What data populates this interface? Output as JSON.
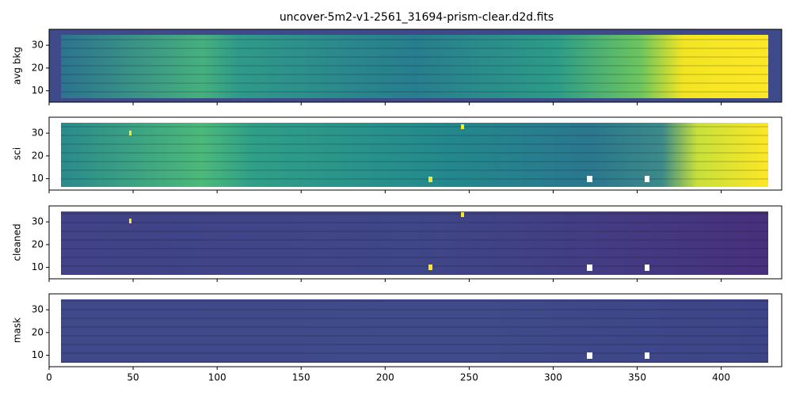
{
  "chart_data": [
    {
      "type": "image",
      "title": "uncover-5m2-v1-2561_31694-prism-clear.d2d.fits",
      "ylabel": "avg bkg",
      "xlim": [
        0,
        436
      ],
      "ylim": [
        5,
        37
      ],
      "xticks": [
        0,
        50,
        100,
        150,
        200,
        250,
        300,
        350,
        400
      ],
      "yticks": [
        10,
        20,
        30
      ]
    },
    {
      "type": "image",
      "ylabel": "sci",
      "xlim": [
        0,
        436
      ],
      "ylim": [
        5,
        37
      ],
      "xticks": [
        0,
        50,
        100,
        150,
        200,
        250,
        300,
        350,
        400
      ],
      "yticks": [
        10,
        20,
        30
      ]
    },
    {
      "type": "image",
      "ylabel": "cleaned",
      "xlim": [
        0,
        436
      ],
      "ylim": [
        5,
        37
      ],
      "xticks": [
        0,
        50,
        100,
        150,
        200,
        250,
        300,
        350,
        400
      ],
      "yticks": [
        10,
        20,
        30
      ]
    },
    {
      "type": "image",
      "ylabel": "mask",
      "xlim": [
        0,
        436
      ],
      "ylim": [
        5,
        37
      ],
      "xticks": [
        0,
        50,
        100,
        150,
        200,
        250,
        300,
        350,
        400
      ],
      "yticks": [
        10,
        20,
        30
      ]
    }
  ]
}
